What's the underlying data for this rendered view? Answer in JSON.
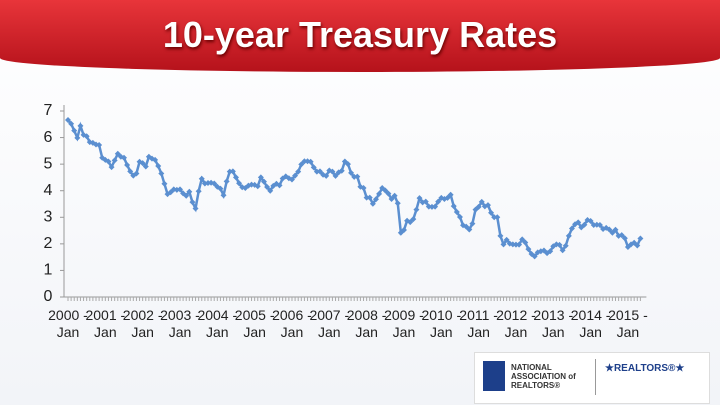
{
  "chart_data": {
    "type": "line",
    "title": "10-year Treasury Rates",
    "categories": [
      "2000 - Jan",
      null,
      null,
      null,
      null,
      null,
      null,
      null,
      null,
      null,
      null,
      null,
      "2001 - Jan",
      null,
      null,
      null,
      null,
      null,
      null,
      null,
      null,
      null,
      null,
      null,
      "2002 - Jan",
      null,
      null,
      null,
      null,
      null,
      null,
      null,
      null,
      null,
      null,
      null,
      "2003 - Jan",
      null,
      null,
      null,
      null,
      null,
      null,
      null,
      null,
      null,
      null,
      null,
      "2004 - Jan",
      null,
      null,
      null,
      null,
      null,
      null,
      null,
      null,
      null,
      null,
      null,
      "2005 - Jan",
      null,
      null,
      null,
      null,
      null,
      null,
      null,
      null,
      null,
      null,
      null,
      "2006 - Jan",
      null,
      null,
      null,
      null,
      null,
      null,
      null,
      null,
      null,
      null,
      null,
      "2007 - Jan",
      null,
      null,
      null,
      null,
      null,
      null,
      null,
      null,
      null,
      null,
      null,
      "2008 - Jan",
      null,
      null,
      null,
      null,
      null,
      null,
      null,
      null,
      null,
      null,
      null,
      "2009 - Jan",
      null,
      null,
      null,
      null,
      null,
      null,
      null,
      null,
      null,
      null,
      null,
      "2010 - Jan",
      null,
      null,
      null,
      null,
      null,
      null,
      null,
      null,
      null,
      null,
      null,
      "2011 - Jan",
      null,
      null,
      null,
      null,
      null,
      null,
      null,
      null,
      null,
      null,
      null,
      "2012 - Jan",
      null,
      null,
      null,
      null,
      null,
      null,
      null,
      null,
      null,
      null,
      null,
      "2013 - Jan",
      null,
      null,
      null,
      null,
      null,
      null,
      null,
      null,
      null,
      null,
      null,
      "2014 - Jan",
      null,
      null,
      null,
      null,
      null,
      null,
      null,
      null,
      null,
      null,
      null,
      "2015 - Jan",
      null,
      null,
      null,
      null
    ],
    "series": [
      {
        "color": "#5b8fd0",
        "values": [
          6.66,
          6.52,
          6.26,
          5.99,
          6.44,
          6.1,
          6.05,
          5.83,
          5.8,
          5.74,
          5.72,
          5.24,
          5.16,
          5.1,
          4.89,
          5.14,
          5.39,
          5.28,
          5.24,
          4.97,
          4.73,
          4.57,
          4.65,
          5.09,
          5.04,
          4.91,
          5.28,
          5.21,
          5.16,
          4.93,
          4.65,
          4.26,
          3.87,
          3.94,
          4.05,
          4.03,
          4.05,
          3.9,
          3.81,
          3.96,
          3.57,
          3.33,
          3.98,
          4.45,
          4.27,
          4.29,
          4.3,
          4.27,
          4.15,
          4.08,
          3.83,
          4.35,
          4.72,
          4.73,
          4.5,
          4.28,
          4.13,
          4.1,
          4.19,
          4.23,
          4.22,
          4.17,
          4.5,
          4.34,
          4.14,
          4.0,
          4.18,
          4.26,
          4.2,
          4.46,
          4.54,
          4.47,
          4.42,
          4.57,
          4.72,
          4.99,
          5.11,
          5.11,
          5.09,
          4.88,
          4.72,
          4.73,
          4.6,
          4.56,
          4.76,
          4.72,
          4.56,
          4.69,
          4.75,
          5.1,
          5.0,
          4.67,
          4.52,
          4.53,
          4.15,
          4.1,
          3.74,
          3.74,
          3.51,
          3.68,
          3.88,
          4.1,
          4.01,
          3.89,
          3.69,
          3.81,
          3.53,
          2.42,
          2.52,
          2.87,
          2.82,
          2.93,
          3.29,
          3.72,
          3.56,
          3.59,
          3.4,
          3.39,
          3.4,
          3.59,
          3.73,
          3.69,
          3.73,
          3.85,
          3.42,
          3.2,
          3.01,
          2.7,
          2.65,
          2.54,
          2.76,
          3.29,
          3.39,
          3.58,
          3.41,
          3.46,
          3.17,
          3.0,
          3.0,
          2.3,
          1.98,
          2.15,
          2.01,
          1.98,
          1.97,
          1.97,
          2.17,
          2.05,
          1.8,
          1.62,
          1.53,
          1.68,
          1.72,
          1.75,
          1.65,
          1.72,
          1.91,
          1.98,
          1.96,
          1.76,
          1.93,
          2.3,
          2.58,
          2.74,
          2.81,
          2.62,
          2.72,
          2.9,
          2.86,
          2.71,
          2.72,
          2.71,
          2.56,
          2.6,
          2.54,
          2.42,
          2.53,
          2.3,
          2.33,
          2.21,
          1.88,
          1.98,
          2.04,
          1.94,
          2.2
        ]
      }
    ],
    "ylim": [
      0,
      7
    ],
    "yticks": [
      0,
      1,
      2,
      3,
      4,
      5,
      6,
      7
    ],
    "grid": false
  },
  "logo": {
    "organization": "NATIONAL ASSOCIATION of REALTORS®",
    "event": "★REALTORS®★"
  }
}
